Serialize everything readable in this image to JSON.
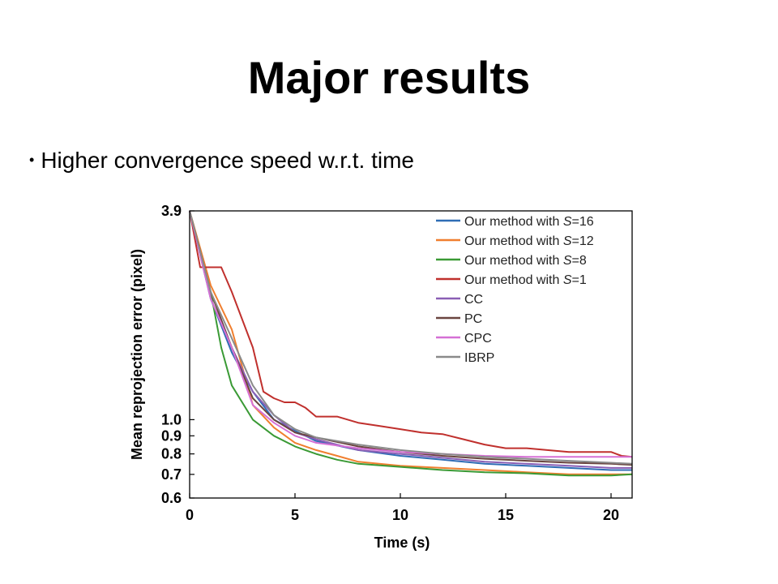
{
  "slide": {
    "title": "Major results",
    "bullet": "Higher convergence speed w.r.t. time"
  },
  "chart_data": {
    "type": "line",
    "title": "",
    "xlabel": "Time (s)",
    "ylabel": "Mean reprojection error (pixel)",
    "y_scale": "log",
    "xlim": [
      0,
      21
    ],
    "ylim": [
      0.6,
      3.9
    ],
    "xticks": [
      0,
      5,
      10,
      15,
      20
    ],
    "yticks": [
      0.6,
      0.7,
      0.8,
      0.9,
      1.0,
      3.9
    ],
    "ytick_labels": [
      "0.6",
      "0.7",
      "0.8",
      "0.9",
      "1.0",
      "3.9"
    ],
    "grid": false,
    "legend_position": "top-right",
    "series": [
      {
        "name": "Our method with S=16",
        "color": "#2f6db5",
        "x": [
          0,
          1,
          2,
          3,
          4,
          5,
          6,
          8,
          10,
          12,
          14,
          16,
          18,
          20,
          21
        ],
        "y": [
          3.9,
          2.2,
          1.55,
          1.2,
          1.0,
          0.93,
          0.87,
          0.82,
          0.79,
          0.77,
          0.75,
          0.74,
          0.73,
          0.72,
          0.72
        ]
      },
      {
        "name": "Our method with S=12",
        "color": "#f07f2f",
        "x": [
          0,
          1,
          2,
          3,
          4,
          5,
          6,
          7,
          8,
          10,
          12,
          14,
          16,
          18,
          20,
          21
        ],
        "y": [
          3.9,
          2.4,
          1.8,
          1.1,
          0.95,
          0.86,
          0.82,
          0.79,
          0.76,
          0.74,
          0.73,
          0.72,
          0.71,
          0.7,
          0.7,
          0.7
        ]
      },
      {
        "name": "Our method with S=8",
        "color": "#3a9a35",
        "x": [
          0,
          1,
          1.5,
          2,
          3,
          4,
          5,
          6,
          7,
          8,
          10,
          12,
          14,
          16,
          18,
          20,
          21
        ],
        "y": [
          3.9,
          2.3,
          1.6,
          1.25,
          1.0,
          0.9,
          0.84,
          0.8,
          0.77,
          0.75,
          0.735,
          0.72,
          0.71,
          0.705,
          0.695,
          0.695,
          0.7
        ]
      },
      {
        "name": "Our method with S=1",
        "color": "#c0302d",
        "x": [
          0,
          0.5,
          1.5,
          2,
          3,
          3.5,
          4,
          4.5,
          5,
          5.5,
          6,
          7,
          8,
          9,
          10,
          11,
          12,
          13,
          14,
          15,
          16,
          18,
          19,
          20,
          20.5,
          21
        ],
        "y": [
          3.9,
          2.7,
          2.7,
          2.3,
          1.6,
          1.2,
          1.15,
          1.12,
          1.12,
          1.08,
          1.02,
          1.02,
          0.98,
          0.96,
          0.94,
          0.92,
          0.91,
          0.88,
          0.85,
          0.83,
          0.83,
          0.81,
          0.81,
          0.81,
          0.79,
          0.785
        ]
      },
      {
        "name": "CC",
        "color": "#8a5fb5",
        "x": [
          0,
          1,
          2,
          3,
          4,
          5,
          6,
          8,
          10,
          12,
          14,
          16,
          18,
          20,
          21
        ],
        "y": [
          3.9,
          2.2,
          1.6,
          1.2,
          1.03,
          0.92,
          0.88,
          0.82,
          0.8,
          0.78,
          0.76,
          0.75,
          0.74,
          0.73,
          0.73
        ]
      },
      {
        "name": "PC",
        "color": "#6a4540",
        "x": [
          0,
          1,
          2,
          3,
          4,
          5,
          6,
          8,
          10,
          12,
          14,
          16,
          18,
          20,
          21
        ],
        "y": [
          3.9,
          2.3,
          1.6,
          1.15,
          1.0,
          0.92,
          0.89,
          0.84,
          0.81,
          0.79,
          0.775,
          0.765,
          0.755,
          0.75,
          0.745
        ]
      },
      {
        "name": "CPC",
        "color": "#d570d5",
        "x": [
          0,
          1,
          2,
          3,
          4,
          5,
          6,
          8,
          10,
          12,
          14,
          16,
          18,
          20,
          21
        ],
        "y": [
          3.9,
          2.2,
          1.6,
          1.1,
          0.98,
          0.9,
          0.86,
          0.83,
          0.81,
          0.8,
          0.79,
          0.785,
          0.785,
          0.785,
          0.785
        ]
      },
      {
        "name": "IBRP",
        "color": "#8a8a8a",
        "x": [
          0,
          1,
          2,
          3,
          4,
          5,
          6,
          8,
          10,
          12,
          14,
          16,
          18,
          20,
          21
        ],
        "y": [
          3.9,
          2.3,
          1.7,
          1.25,
          1.03,
          0.94,
          0.89,
          0.85,
          0.82,
          0.8,
          0.785,
          0.775,
          0.765,
          0.755,
          0.75
        ]
      }
    ]
  }
}
